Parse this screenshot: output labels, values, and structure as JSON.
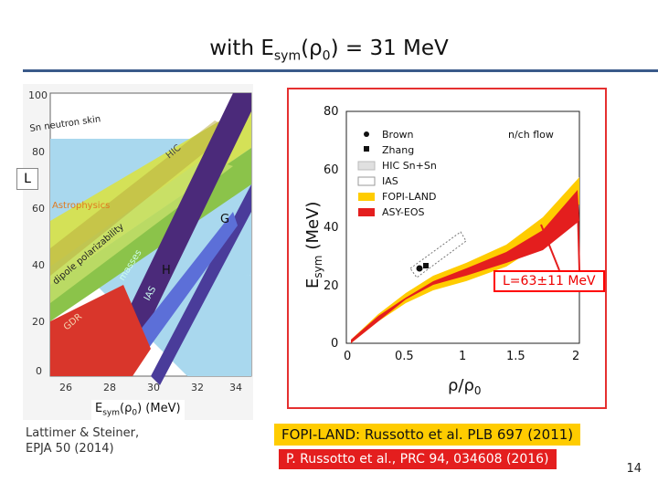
{
  "slide": {
    "title_main": "with E",
    "title_sub": "sym",
    "title_mid": "(ρ",
    "title_sub2": "0",
    "title_end": ") = 31 MeV",
    "page_number": "14"
  },
  "left_panel": {
    "y_ticks": [
      "100",
      "80",
      "60",
      "40",
      "20",
      "0"
    ],
    "x_ticks": [
      "26",
      "28",
      "30",
      "32",
      "34"
    ],
    "regions": [
      "Sn neutron skin",
      "HIC",
      "Astrophysics",
      "dipole polarizability",
      "GDR",
      "IAS",
      "masses",
      "H",
      "G"
    ],
    "l_label": "L",
    "x_label_main": "E",
    "x_label_sub": "sym",
    "x_label_mid": "(ρ",
    "x_label_sub2": "0",
    "x_label_end": ") (MeV)",
    "citation_line1": "Lattimer & Steiner,",
    "citation_line2": "EPJA 50 (2014)"
  },
  "right_panel": {
    "y_ticks": [
      "80",
      "60",
      "40",
      "20",
      "0"
    ],
    "x_ticks": [
      "0",
      "0.5",
      "1",
      "1.5",
      "2"
    ],
    "y_label_main": "E",
    "y_label_sub": "sym",
    "y_label_unit": "(MeV)",
    "x_label": "ρ/ρ",
    "x_label_sub": "0",
    "legend": [
      "Brown",
      "Zhang",
      "HIC Sn+Sn",
      "IAS",
      "FOPI-LAND",
      "ASY-EOS"
    ],
    "flow_label": "n/ch flow",
    "l_value": "L=63±11 MeV"
  },
  "footer": {
    "fopi_ref": "FOPI-LAND: Russotto et al. PLB 697 (2011)",
    "asy_ref": "P. Russotto et al., PRC 94, 034608 (2016)"
  },
  "colors": {
    "accent_rule": "#3a5a8a",
    "fopi": "#ffcc00",
    "asy": "#e41e1e",
    "chart_border": "#e53030"
  }
}
